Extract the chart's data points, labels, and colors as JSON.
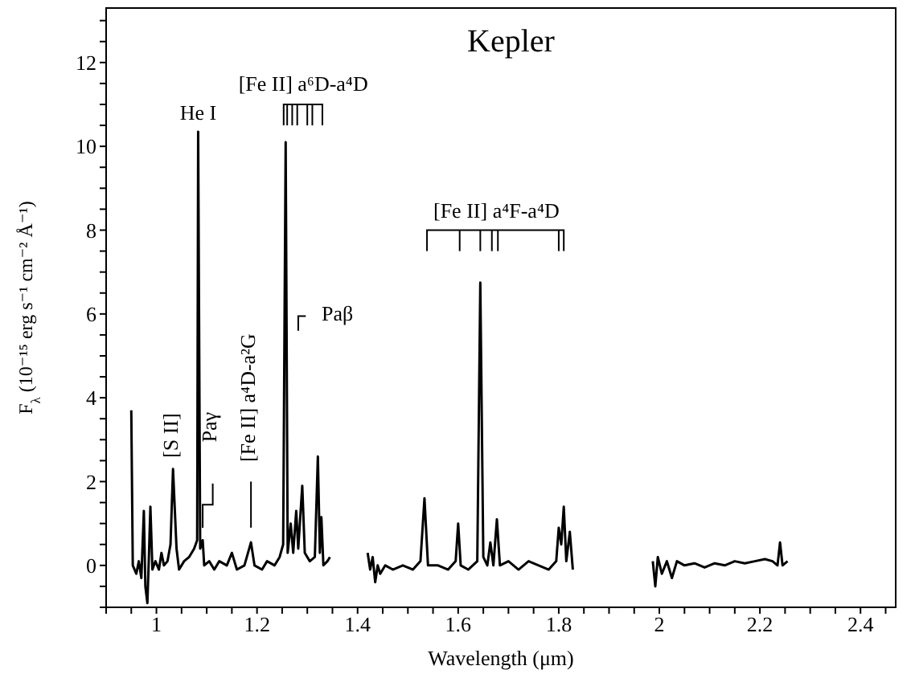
{
  "chart_data": {
    "type": "line",
    "title": "Kepler",
    "xlabel": "Wavelength (μm)",
    "ylabel": "F$_{λ}$ (10⁻¹⁵ erg s⁻¹ cm⁻² Å⁻¹)",
    "xlim": [
      0.9,
      2.47
    ],
    "ylim": [
      -1,
      13.3
    ],
    "xticks": [
      {
        "value": 0.9,
        "label": null
      },
      {
        "value": 0.95,
        "label": null
      },
      1,
      {
        "value": 1.05,
        "label": null
      },
      {
        "value": 1.1,
        "label": null
      },
      {
        "value": 1.15,
        "label": null
      },
      1.2,
      {
        "value": 1.25,
        "label": null
      },
      {
        "value": 1.3,
        "label": null
      },
      {
        "value": 1.35,
        "label": null
      },
      1.4,
      {
        "value": 1.45,
        "label": null
      },
      {
        "value": 1.5,
        "label": null
      },
      {
        "value": 1.55,
        "label": null
      },
      1.6,
      {
        "value": 1.65,
        "label": null
      },
      {
        "value": 1.7,
        "label": null
      },
      {
        "value": 1.75,
        "label": null
      },
      1.8,
      {
        "value": 1.85,
        "label": null
      },
      {
        "value": 1.9,
        "label": null
      },
      {
        "value": 1.95,
        "label": null
      },
      2,
      {
        "value": 2.05,
        "label": null
      },
      {
        "value": 2.1,
        "label": null
      },
      {
        "value": 2.15,
        "label": null
      },
      2.2,
      {
        "value": 2.25,
        "label": null
      },
      {
        "value": 2.3,
        "label": null
      },
      {
        "value": 2.35,
        "label": null
      },
      2.4,
      {
        "value": 2.45,
        "label": null
      }
    ],
    "yticks": [
      {
        "value": -1,
        "label": null
      },
      {
        "value": -0.5,
        "label": null
      },
      0,
      {
        "value": 0.5,
        "label": null
      },
      {
        "value": 1,
        "label": null
      },
      {
        "value": 1.5,
        "label": null
      },
      2,
      {
        "value": 2.5,
        "label": null
      },
      {
        "value": 3,
        "label": null
      },
      {
        "value": 3.5,
        "label": null
      },
      4,
      {
        "value": 4.5,
        "label": null
      },
      {
        "value": 5,
        "label": null
      },
      {
        "value": 5.5,
        "label": null
      },
      6,
      {
        "value": 6.5,
        "label": null
      },
      {
        "value": 7,
        "label": null
      },
      {
        "value": 7.5,
        "label": null
      },
      8,
      {
        "value": 8.5,
        "label": null
      },
      {
        "value": 9,
        "label": null
      },
      {
        "value": 9.5,
        "label": null
      },
      10,
      {
        "value": 10.5,
        "label": null
      },
      {
        "value": 11,
        "label": null
      },
      {
        "value": 11.5,
        "label": null
      },
      12,
      {
        "value": 12.5,
        "label": null
      },
      {
        "value": 13,
        "label": null
      }
    ],
    "annotations": [
      "He I",
      "[S II]",
      "Paγ",
      "[Fe II] a⁴D-a²G",
      "[Fe II] a⁶D-a⁴D",
      "Paβ",
      "[Fe II] a⁴F-a⁴D"
    ],
    "x": [
      0.95,
      0.953,
      0.96,
      0.965,
      0.97,
      0.975,
      0.978,
      0.982,
      0.985,
      0.988,
      0.992,
      0.998,
      1.005,
      1.01,
      1.015,
      1.022,
      1.028,
      1.033,
      1.04,
      1.045,
      1.055,
      1.065,
      1.075,
      1.081,
      1.083,
      1.087,
      1.092,
      1.095,
      1.105,
      1.115,
      1.125,
      1.14,
      1.15,
      1.16,
      1.175,
      1.188,
      1.195,
      1.21,
      1.22,
      1.235,
      1.245,
      1.252,
      1.257,
      1.261,
      1.267,
      1.272,
      1.278,
      1.282,
      1.29,
      1.295,
      1.305,
      1.315,
      1.321,
      1.325,
      1.328,
      1.332,
      1.34,
      1.345,
      1.38,
      1.42,
      1.425,
      1.43,
      1.435,
      1.44,
      1.445,
      1.455,
      1.47,
      1.49,
      1.51,
      1.525,
      1.533,
      1.54,
      1.56,
      1.58,
      1.595,
      1.6,
      1.605,
      1.62,
      1.638,
      1.644,
      1.65,
      1.658,
      1.664,
      1.67,
      1.677,
      1.683,
      1.7,
      1.72,
      1.74,
      1.76,
      1.78,
      1.795,
      1.8,
      1.805,
      1.81,
      1.815,
      1.822,
      1.828,
      1.9,
      1.987,
      1.992,
      1.997,
      2.005,
      2.015,
      2.025,
      2.035,
      2.05,
      2.07,
      2.09,
      2.11,
      2.13,
      2.15,
      2.17,
      2.19,
      2.21,
      2.225,
      2.235,
      2.24,
      2.245,
      2.255
    ],
    "series": [
      {
        "color": "#000000",
        "values": [
          3.7,
          0,
          -0.2,
          0.1,
          -0.3,
          1.3,
          -0.5,
          -0.9,
          0.2,
          1.4,
          -0.1,
          0.1,
          -0.1,
          0.3,
          0,
          0.1,
          0.5,
          2.3,
          0.4,
          -0.1,
          0.1,
          0.2,
          0.4,
          0.6,
          10.35,
          0.4,
          0.6,
          0,
          0.1,
          -0.1,
          0.1,
          0,
          0.3,
          -0.1,
          0,
          0.55,
          0,
          -0.1,
          0.1,
          0,
          0.2,
          0.5,
          10.1,
          0.3,
          1,
          0.3,
          1.3,
          0.4,
          1.9,
          0.3,
          0.1,
          0.2,
          2.6,
          0.3,
          1.15,
          0,
          0.1,
          0.2,
          null,
          0.3,
          -0.1,
          0.2,
          -0.4,
          0,
          -0.2,
          0,
          -0.1,
          0,
          -0.1,
          0.1,
          1.6,
          0,
          0,
          -0.1,
          0.1,
          1,
          0,
          -0.1,
          0.1,
          6.75,
          0.2,
          0,
          0.55,
          0,
          1.1,
          0,
          0.1,
          -0.1,
          0.1,
          0,
          -0.1,
          0.1,
          0.9,
          0.5,
          1.4,
          0.1,
          0.8,
          -0.1,
          null,
          0.1,
          -0.5,
          0.2,
          -0.2,
          0.1,
          -0.3,
          0.1,
          0,
          0.05,
          -0.05,
          0.05,
          0,
          0.1,
          0.05,
          0.1,
          0.15,
          0.1,
          0,
          0.55,
          0,
          0.1
        ]
      }
    ]
  }
}
